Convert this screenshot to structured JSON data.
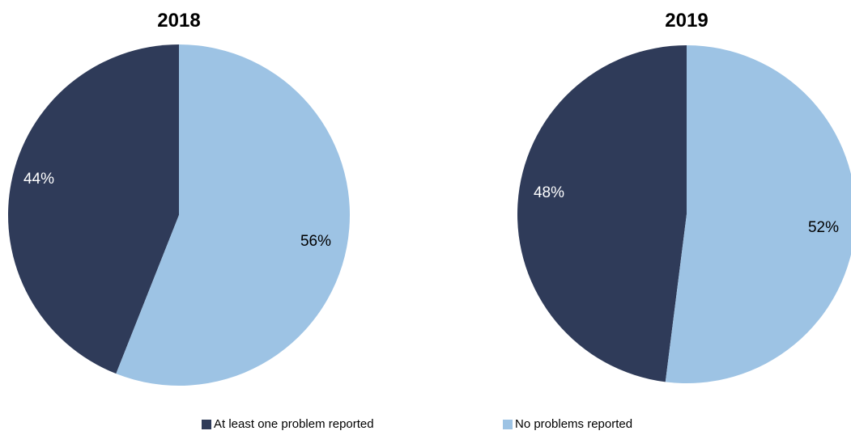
{
  "chart_data": [
    {
      "type": "pie",
      "title": "2018",
      "categories": [
        "At least one problem reported",
        "No problems reported"
      ],
      "values": [
        44,
        56
      ],
      "data_labels": [
        "44%",
        "56%"
      ],
      "colors": [
        "#2f3b59",
        "#9dc3e4"
      ],
      "label_colors": [
        "#ffffff",
        "#000000"
      ],
      "start_angle_deg": 0,
      "direction": "counterclockwise-dark-first"
    },
    {
      "type": "pie",
      "title": "2019",
      "categories": [
        "At least one problem reported",
        "No problems reported"
      ],
      "values": [
        48,
        52
      ],
      "data_labels": [
        "48%",
        "52%"
      ],
      "colors": [
        "#2f3b59",
        "#9dc3e4"
      ],
      "label_colors": [
        "#ffffff",
        "#000000"
      ],
      "start_angle_deg": 0,
      "direction": "counterclockwise-dark-first"
    }
  ],
  "legend": {
    "placement": "bottom",
    "items": [
      {
        "label": "At least one problem reported",
        "color": "#2f3b59"
      },
      {
        "label": "No problems reported",
        "color": "#9dc3e4"
      }
    ]
  }
}
